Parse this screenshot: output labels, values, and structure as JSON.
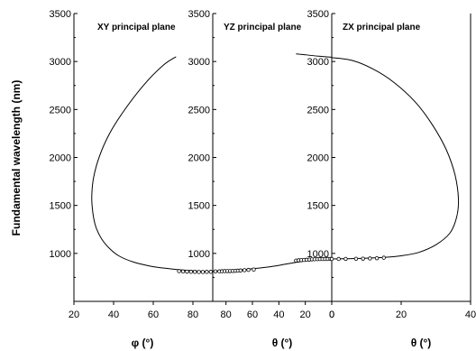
{
  "chart_data": [
    {
      "type": "line",
      "title": "XY principal plane",
      "xlabel": "φ (°)",
      "ylabel": "Fundamental wavelength (nm)",
      "xlim": [
        20,
        90
      ],
      "ylim": [
        500,
        3500
      ],
      "xticks": [
        20,
        40,
        60,
        80
      ],
      "yticks": [
        1000,
        1500,
        2000,
        2500,
        3000,
        3500
      ],
      "series": [
        {
          "kind": "line",
          "x": [
            71.5,
            65,
            55,
            45,
            38,
            33,
            30,
            29,
            29.5,
            31,
            34,
            38,
            43,
            50,
            58,
            66,
            74,
            82,
            88
          ],
          "y": [
            3050,
            2960,
            2750,
            2480,
            2250,
            2020,
            1800,
            1600,
            1430,
            1280,
            1150,
            1050,
            970,
            910,
            870,
            845,
            828,
            818,
            815
          ]
        },
        {
          "kind": "points",
          "x": [
            73,
            75,
            77,
            79,
            81,
            83,
            85,
            87,
            89
          ],
          "y": [
            815,
            812,
            810,
            808,
            807,
            806,
            806,
            807,
            808
          ]
        }
      ]
    },
    {
      "type": "line",
      "title": "YZ principal plane",
      "xlabel": "θ (°)",
      "xlim": [
        90,
        0
      ],
      "ylim": [
        500,
        3500
      ],
      "xticks": [
        80,
        60,
        40,
        20,
        0
      ],
      "yticks": [
        1000,
        1500,
        2000,
        2500,
        3000,
        3500
      ],
      "series": [
        {
          "kind": "line",
          "x": [
            90,
            80,
            70,
            60,
            50,
            40,
            30,
            20,
            10,
            0
          ],
          "y": [
            815,
            820,
            828,
            840,
            855,
            875,
            900,
            920,
            935,
            940
          ]
        },
        {
          "kind": "line",
          "x": [
            27,
            20,
            10,
            0
          ],
          "y": [
            3080,
            3070,
            3055,
            3045
          ]
        },
        {
          "kind": "points",
          "x": [
            88,
            85,
            83,
            81,
            79,
            77,
            75,
            73,
            71,
            69,
            66,
            63,
            59,
            27,
            25,
            23,
            21,
            19,
            17,
            15,
            13,
            11,
            9,
            7,
            5,
            3,
            1
          ],
          "y": [
            812,
            813,
            814,
            815,
            816,
            816,
            817,
            818,
            820,
            822,
            825,
            828,
            832,
            925,
            928,
            930,
            932,
            934,
            936,
            938,
            939,
            940,
            941,
            941,
            942,
            942,
            943
          ]
        }
      ]
    },
    {
      "type": "line",
      "title": "ZX principal plane",
      "xlabel": "θ (°)",
      "xlim": [
        0,
        40
      ],
      "ylim": [
        500,
        3500
      ],
      "xticks": [
        0,
        20,
        40
      ],
      "yticks": [
        1000,
        1500,
        2000,
        2500,
        3000,
        3500
      ],
      "series": [
        {
          "kind": "line",
          "x": [
            0,
            6,
            12,
            18,
            24,
            29,
            33,
            35.5,
            36.5,
            36,
            34,
            30,
            25,
            20,
            15,
            10,
            5,
            0
          ],
          "y": [
            3040,
            3010,
            2920,
            2780,
            2580,
            2340,
            2080,
            1820,
            1570,
            1380,
            1210,
            1090,
            1010,
            975,
            958,
            950,
            945,
            942
          ]
        },
        {
          "kind": "points",
          "x": [
            0,
            2,
            4,
            7,
            9,
            11,
            13,
            15
          ],
          "y": [
            942,
            942,
            943,
            944,
            945,
            947,
            950,
            955
          ]
        }
      ]
    }
  ]
}
